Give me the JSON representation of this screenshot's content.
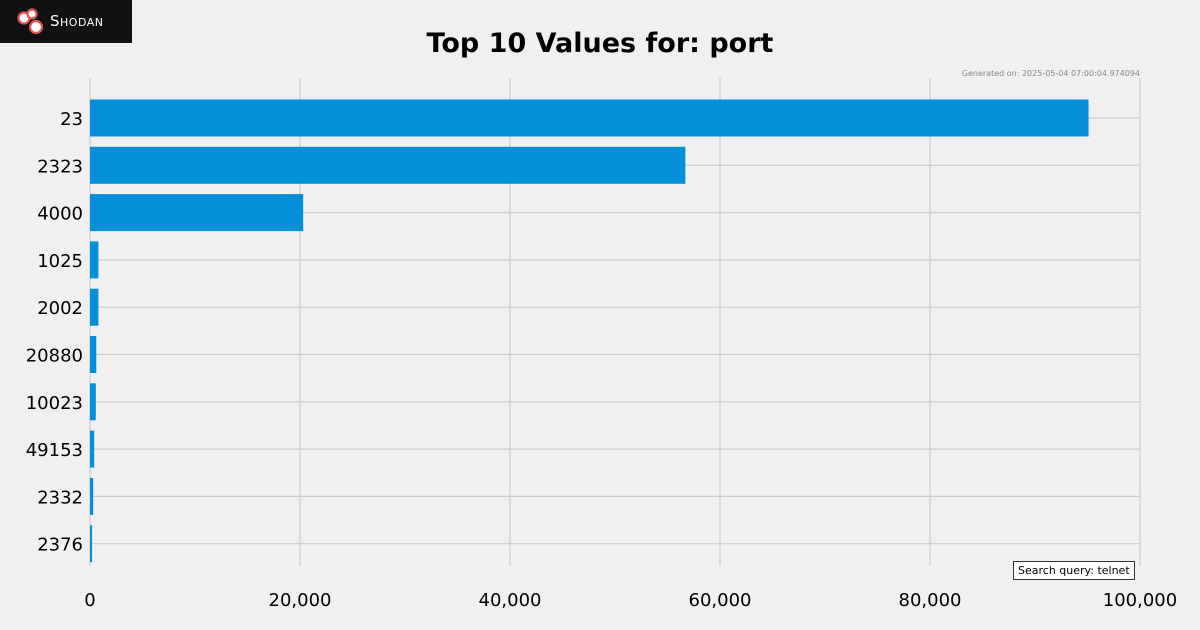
{
  "header": {
    "logo_text": "Shodan",
    "generated": "Generated on: 2025-05-04 07:00:04.974094"
  },
  "search_query": "Search query: telnet",
  "colors": {
    "bar": "#0390d8",
    "grid": "#cbcbcb",
    "background": "#f0f0f0"
  },
  "chart_data": {
    "type": "bar",
    "orientation": "horizontal",
    "title": "Top 10 Values for: port",
    "categories": [
      "23",
      "2323",
      "4000",
      "1025",
      "2002",
      "20880",
      "10023",
      "49153",
      "2332",
      "2376"
    ],
    "values": [
      95100,
      56700,
      20300,
      800,
      800,
      600,
      550,
      400,
      300,
      200
    ],
    "xlim": [
      0,
      100000
    ],
    "xticks": [
      0,
      20000,
      40000,
      60000,
      80000,
      100000
    ],
    "xtick_labels": [
      "0",
      "20,000",
      "40,000",
      "60,000",
      "80,000",
      "100,000"
    ],
    "grid": true,
    "xlabel": "",
    "ylabel": ""
  }
}
